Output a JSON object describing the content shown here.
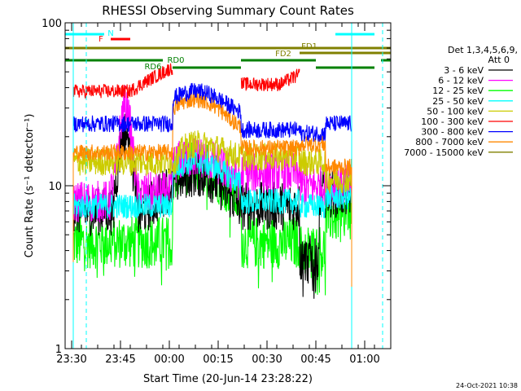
{
  "chart_data": {
    "type": "line",
    "title": "RHESSI Observing Summary Count Rates",
    "xlabel": "Start Time (20-Jun-14 23:28:22)",
    "ylabel": "Count Rate (s⁻¹ detector⁻¹)",
    "y_scale": "log",
    "ylim": [
      1,
      100
    ],
    "xlim": [
      "23:28",
      "01:08"
    ],
    "x_ticks": [
      "23:30",
      "23:45",
      "00:00",
      "00:15",
      "00:30",
      "00:45",
      "01:00"
    ],
    "y_ticks": [
      "1",
      "10",
      "100"
    ],
    "timestamp": "24-Oct-2021 10:38",
    "legend": {
      "header1": "Det 1,3,4,5,6,9,",
      "header2": "Att 0",
      "placement": "right"
    },
    "series": [
      {
        "name": "3 - 6 keV",
        "color": "#000000"
      },
      {
        "name": "6 - 12 keV",
        "color": "#ff00ff"
      },
      {
        "name": "12 - 25 keV",
        "color": "#00ff00"
      },
      {
        "name": "25 - 50 keV",
        "color": "#00ffff"
      },
      {
        "name": "50 - 100 keV",
        "color": "#cccc00"
      },
      {
        "name": "100 - 300 keV",
        "color": "#ff0000"
      },
      {
        "name": "300 - 800 keV",
        "color": "#0000ff"
      },
      {
        "name": "800 - 7000 keV",
        "color": "#ff8800"
      },
      {
        "name": "7000 - 15000 keV",
        "color": "#808000"
      }
    ],
    "flags": [
      {
        "label": "N",
        "color": "#00ffff"
      },
      {
        "label": "F",
        "color": "#ff0000"
      },
      {
        "label": "FD1",
        "color": "#808000"
      },
      {
        "label": "FD2",
        "color": "#808000"
      },
      {
        "label": "RD0",
        "color": "#008000"
      },
      {
        "label": "RD6",
        "color": "#008000"
      }
    ]
  }
}
